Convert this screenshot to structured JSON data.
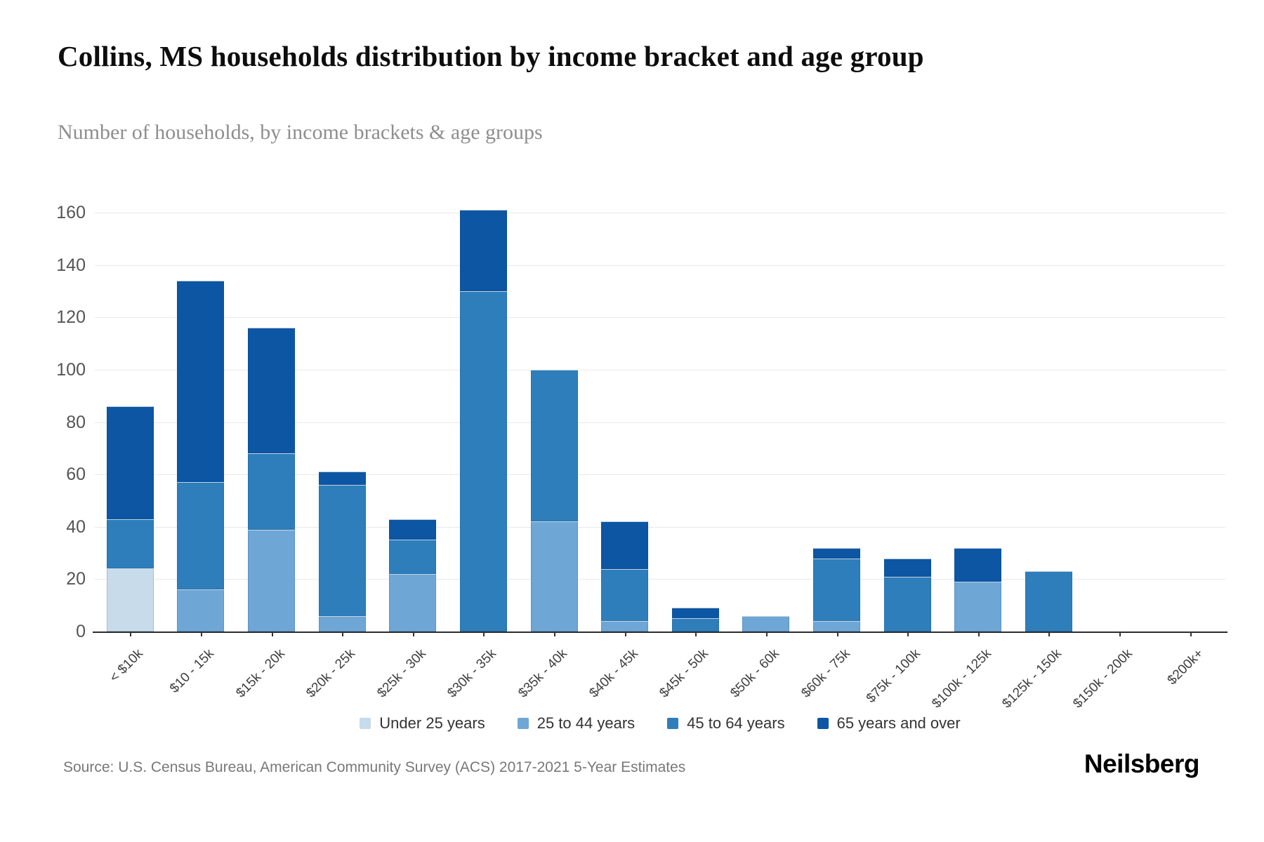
{
  "header": {
    "title": "Collins, MS households distribution by income bracket and age group",
    "subtitle": "Number of households, by income brackets & age groups"
  },
  "chart_data": {
    "type": "bar",
    "stacked": true,
    "title": "Collins, MS households distribution by income bracket and age group",
    "subtitle": "Number of households, by income brackets & age groups",
    "xlabel": "",
    "ylabel": "Number of households",
    "ylim": [
      0,
      160
    ],
    "ytick_step": 20,
    "grid": true,
    "legend_position": "bottom",
    "categories": [
      "< $10k",
      "$10 - 15k",
      "$15k - 20k",
      "$20k - 25k",
      "$25k - 30k",
      "$30k - 35k",
      "$35k - 40k",
      "$40k - 45k",
      "$45k - 50k",
      "$50k - 60k",
      "$60k - 75k",
      "$75k - 100k",
      "$100k - 125k",
      "$125k - 150k",
      "$150k - 200k",
      "$200k+"
    ],
    "series": [
      {
        "name": "Under 25 years",
        "color": "#c7dbea",
        "values": [
          24,
          0,
          0,
          0,
          0,
          0,
          0,
          0,
          0,
          0,
          0,
          0,
          0,
          0,
          0,
          0
        ]
      },
      {
        "name": "25 to 44 years",
        "color": "#6ea7d6",
        "values": [
          0,
          16,
          39,
          6,
          22,
          0,
          42,
          4,
          0,
          6,
          4,
          0,
          19,
          0,
          0,
          0
        ]
      },
      {
        "name": "45 to 64 years",
        "color": "#2e7ebb",
        "values": [
          19,
          41,
          29,
          50,
          13,
          130,
          58,
          20,
          5,
          0,
          24,
          21,
          0,
          23,
          0,
          0
        ]
      },
      {
        "name": "65 years and over",
        "color": "#0c56a4",
        "values": [
          43,
          77,
          48,
          5,
          8,
          31,
          0,
          18,
          4,
          0,
          4,
          7,
          13,
          0,
          0,
          0
        ]
      }
    ],
    "totals": [
      86,
      134,
      116,
      61,
      43,
      161,
      100,
      42,
      9,
      6,
      32,
      28,
      32,
      23,
      0,
      0
    ]
  },
  "footer": {
    "source": "Source: U.S. Census Bureau, American Community Survey (ACS) 2017-2021 5-Year Estimates",
    "brand": "Neilsberg"
  }
}
